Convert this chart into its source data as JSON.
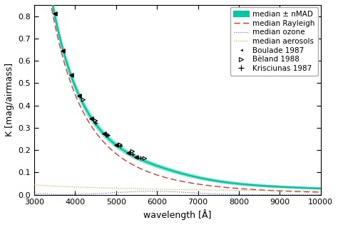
{
  "xlim": [
    3000,
    10000
  ],
  "ylim": [
    0,
    0.85
  ],
  "xlabel": "wavelength [Å]",
  "ylabel": "K [mag/airmass]",
  "xticks": [
    3000,
    4000,
    5000,
    6000,
    7000,
    8000,
    9000,
    10000
  ],
  "yticks": [
    0.0,
    0.1,
    0.2,
    0.3,
    0.4,
    0.5,
    0.6,
    0.7,
    0.8
  ],
  "median_color": "#00c8a0",
  "median_fill_color": "#00c8a0",
  "rayleigh_color": "#dd3333",
  "ozone_color": "#4466cc",
  "aerosol_color": "#dd9922",
  "legend_labels": [
    "median ± nMAD",
    "median Rayleigh",
    "median ozone",
    "median aerosols",
    "Boulade 1987",
    "Bèland 1988",
    "Krisciunas 1987"
  ],
  "figsize": [
    4.74,
    3.15
  ],
  "dpi": 100
}
